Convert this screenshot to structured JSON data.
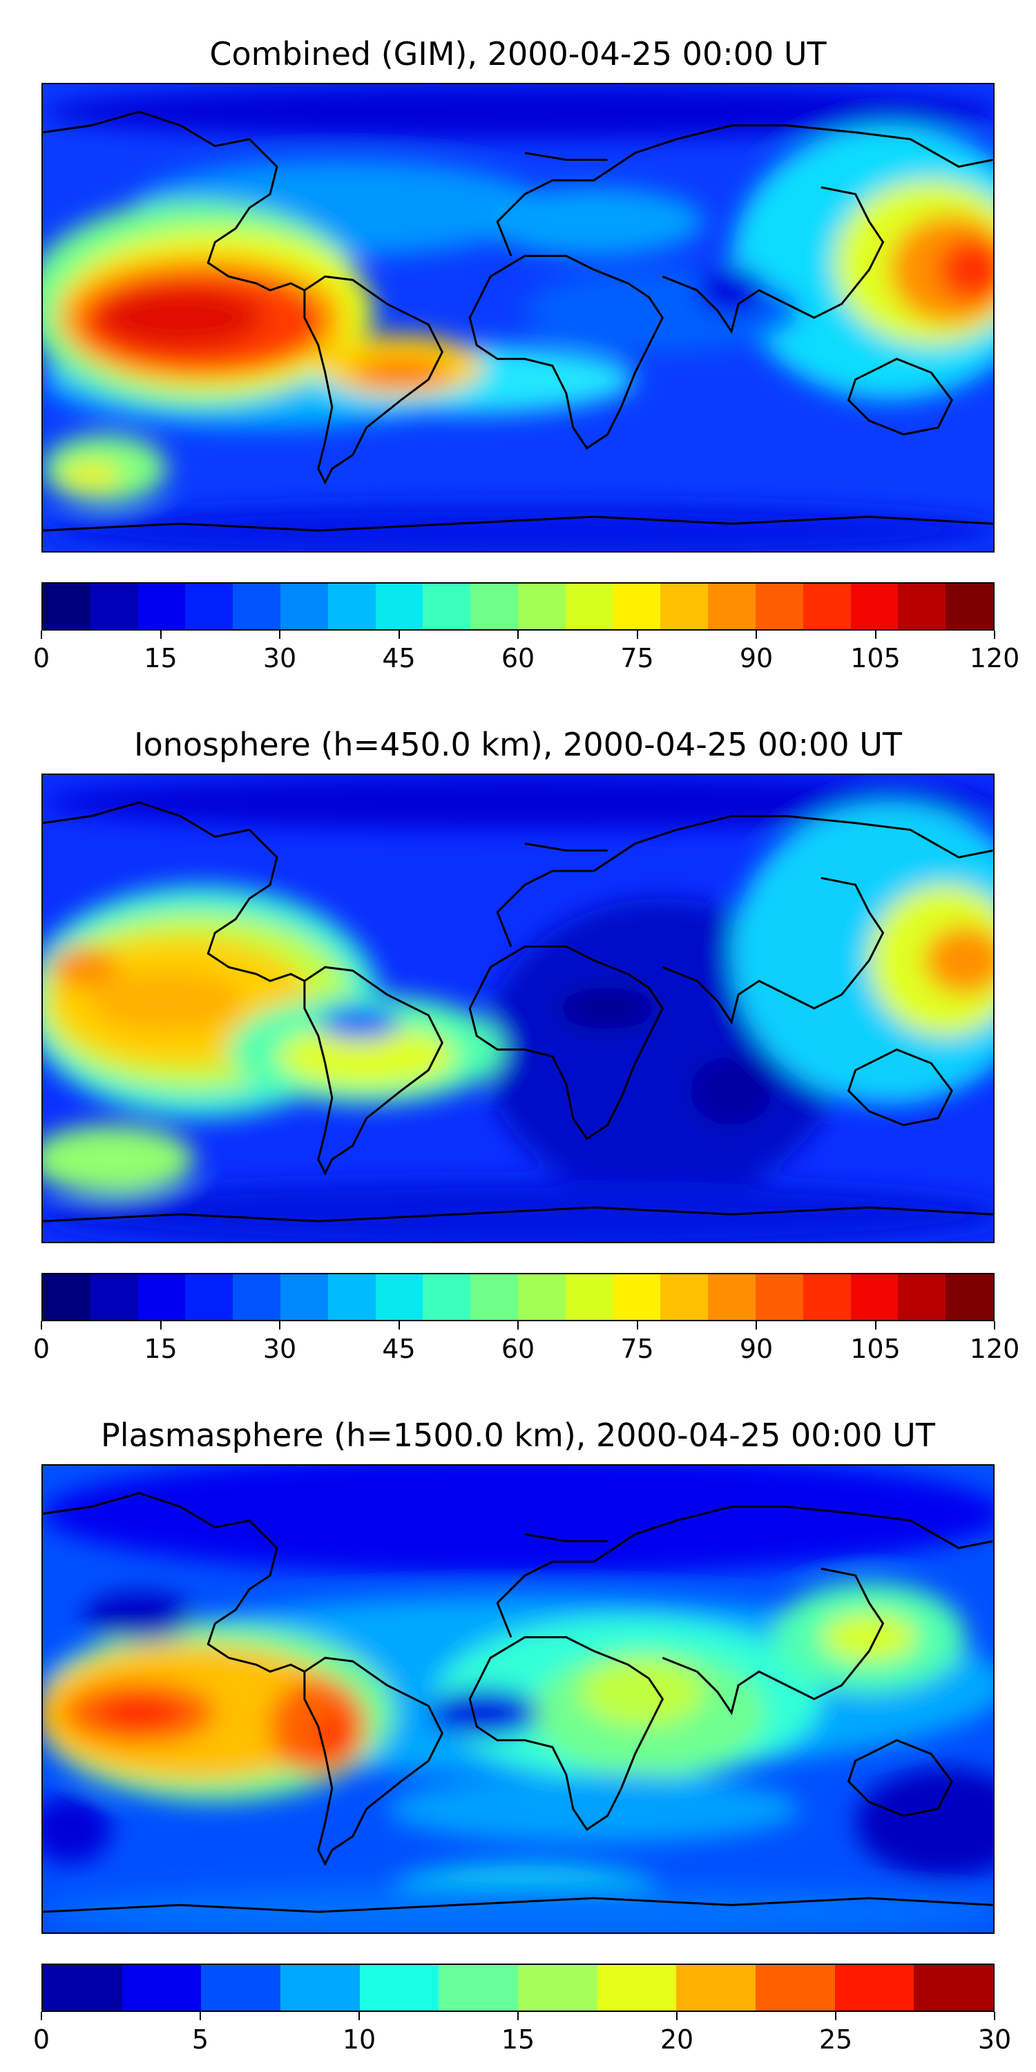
{
  "panels": [
    {
      "title": "Combined (GIM), 2000-04-25 00:00 UT",
      "colorbar": {
        "ticks": [
          "0",
          "15",
          "30",
          "45",
          "60",
          "75",
          "90",
          "105",
          "120"
        ],
        "colors": [
          "#00007f",
          "#0000b8",
          "#0000f1",
          "#0020ff",
          "#0054ff",
          "#0088ff",
          "#00bcff",
          "#08e8ef",
          "#3bffbc",
          "#6fff88",
          "#a2ff54",
          "#d6ff20",
          "#fff100",
          "#ffc000",
          "#ff8f00",
          "#ff5e00",
          "#ff2d00",
          "#f10700",
          "#b80000",
          "#7f0000"
        ]
      }
    },
    {
      "title": "Ionosphere  (h=450.0 km), 2000-04-25 00:00 UT",
      "colorbar": {
        "ticks": [
          "0",
          "15",
          "30",
          "45",
          "60",
          "75",
          "90",
          "105",
          "120"
        ],
        "colors": [
          "#00007f",
          "#0000b8",
          "#0000f1",
          "#0020ff",
          "#0054ff",
          "#0088ff",
          "#00bcff",
          "#08e8ef",
          "#3bffbc",
          "#6fff88",
          "#a2ff54",
          "#d6ff20",
          "#fff100",
          "#ffc000",
          "#ff8f00",
          "#ff5e00",
          "#ff2d00",
          "#f10700",
          "#b80000",
          "#7f0000"
        ]
      }
    },
    {
      "title": "Plasmasphere (h=1500.0 km), 2000-04-25 00:00 UT",
      "colorbar": {
        "ticks": [
          "0",
          "5",
          "10",
          "15",
          "20",
          "25",
          "30"
        ],
        "colors": [
          "#0000a8",
          "#0000f1",
          "#0050ff",
          "#00a8ff",
          "#19ffe6",
          "#66ff99",
          "#a6ff59",
          "#e6ff19",
          "#ffb000",
          "#ff6000",
          "#ff1a00",
          "#a80000"
        ]
      }
    }
  ],
  "legend_colors": {
    "coastline": "#000000",
    "background": "#ffffff"
  }
}
